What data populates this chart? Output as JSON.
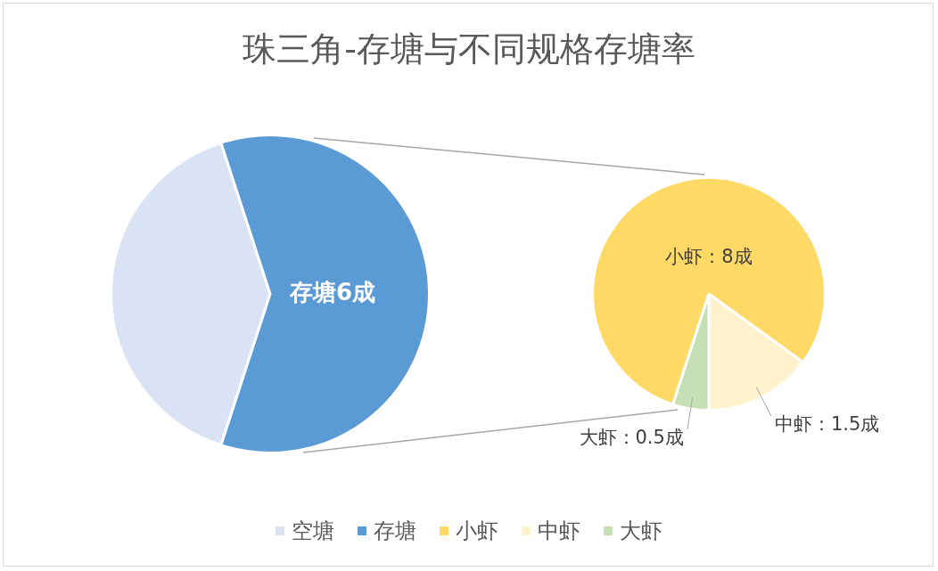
{
  "chart_data": [
    {
      "type": "pie",
      "title": "珠三角-存塘与不同规格存塘率",
      "categories": [
        "空塘",
        "存塘"
      ],
      "values": [
        4,
        6
      ],
      "colors": [
        "#dae3f3",
        "#5b9bd5"
      ],
      "value_labels": [
        null,
        "存塘6成"
      ],
      "legend": "bottom"
    },
    {
      "type": "pie",
      "categories": [
        "小虾",
        "中虾",
        "大虾"
      ],
      "values": [
        8,
        1.5,
        0.5
      ],
      "colors": [
        "#ffd966",
        "#fff2cc",
        "#c5e0b4"
      ],
      "value_labels": [
        "小虾：8成",
        "中虾：1.5成",
        "大虾：0.5成"
      ],
      "legend": "bottom"
    }
  ]
}
